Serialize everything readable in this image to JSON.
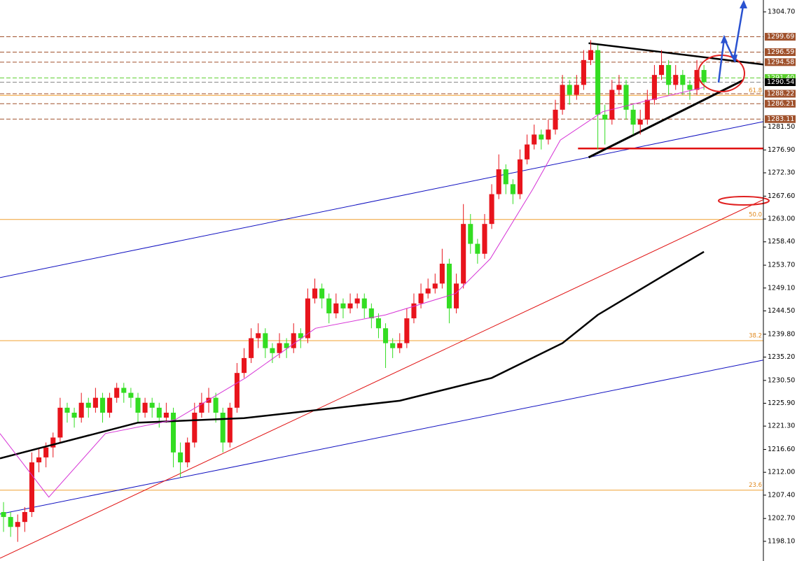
{
  "chart_data": {
    "type": "candlestick",
    "xlim": [
      -0.5,
      107.4
    ],
    "ylim": [
      1194.14,
      1307.09
    ],
    "yticks": [
      {
        "value": 1304.7,
        "label": "1304.70"
      },
      {
        "value": 1281.5,
        "label": "1281.50"
      },
      {
        "value": 1276.9,
        "label": "1276.90"
      },
      {
        "value": 1272.3,
        "label": "1272.30"
      },
      {
        "value": 1267.6,
        "label": "1267.60"
      },
      {
        "value": 1263.0,
        "label": "1263.00"
      },
      {
        "value": 1258.4,
        "label": "1258.40"
      },
      {
        "value": 1253.7,
        "label": "1253.70"
      },
      {
        "value": 1249.1,
        "label": "1249.10"
      },
      {
        "value": 1244.5,
        "label": "1244.50"
      },
      {
        "value": 1239.8,
        "label": "1239.80"
      },
      {
        "value": 1235.2,
        "label": "1235.20"
      },
      {
        "value": 1230.5,
        "label": "1230.50"
      },
      {
        "value": 1225.9,
        "label": "1225.90"
      },
      {
        "value": 1221.3,
        "label": "1221.30"
      },
      {
        "value": 1216.6,
        "label": "1216.60"
      },
      {
        "value": 1212.0,
        "label": "1212.00"
      },
      {
        "value": 1207.4,
        "label": "1207.40"
      },
      {
        "value": 1202.7,
        "label": "1202.70"
      },
      {
        "value": 1198.1,
        "label": "1198.10"
      }
    ],
    "up_color": "#e8141c",
    "down_color": "#33dd22",
    "ohlc": [
      [
        1204,
        1206,
        1200,
        1203
      ],
      [
        1203,
        1204,
        1199,
        1201
      ],
      [
        1201,
        1203.5,
        1198,
        1202
      ],
      [
        1202,
        1205,
        1200,
        1204
      ],
      [
        1204,
        1216,
        1203,
        1214
      ],
      [
        1214,
        1217,
        1212,
        1215
      ],
      [
        1215,
        1218,
        1213,
        1217
      ],
      [
        1217,
        1220,
        1215,
        1219
      ],
      [
        1219,
        1227,
        1218,
        1225
      ],
      [
        1225,
        1226,
        1222,
        1224
      ],
      [
        1224,
        1225,
        1221,
        1223
      ],
      [
        1223,
        1228,
        1222,
        1226
      ],
      [
        1226,
        1227,
        1223,
        1225
      ],
      [
        1225,
        1229,
        1224,
        1227
      ],
      [
        1227,
        1228,
        1222,
        1224
      ],
      [
        1224,
        1228,
        1223,
        1227
      ],
      [
        1227,
        1230,
        1226,
        1229
      ],
      [
        1229,
        1230,
        1226,
        1228
      ],
      [
        1228,
        1229,
        1225,
        1227
      ],
      [
        1227,
        1228,
        1222,
        1224
      ],
      [
        1224,
        1227,
        1223,
        1226
      ],
      [
        1226,
        1227,
        1223,
        1225
      ],
      [
        1225,
        1226,
        1221,
        1223
      ],
      [
        1223,
        1226,
        1222,
        1224
      ],
      [
        1224,
        1225,
        1213,
        1216
      ],
      [
        1216,
        1218,
        1211,
        1214
      ],
      [
        1214,
        1219,
        1213,
        1218
      ],
      [
        1218,
        1226,
        1217,
        1224
      ],
      [
        1224,
        1228,
        1223,
        1226
      ],
      [
        1226,
        1229,
        1224,
        1227
      ],
      [
        1227,
        1228,
        1222,
        1224
      ],
      [
        1224,
        1225,
        1216,
        1218
      ],
      [
        1218,
        1226,
        1217,
        1225
      ],
      [
        1225,
        1234,
        1224,
        1232
      ],
      [
        1232,
        1237,
        1231,
        1235
      ],
      [
        1235,
        1241,
        1234,
        1239
      ],
      [
        1239,
        1242,
        1237,
        1240
      ],
      [
        1240,
        1241,
        1235,
        1237
      ],
      [
        1237,
        1238,
        1234,
        1236
      ],
      [
        1236,
        1240,
        1235,
        1238
      ],
      [
        1238,
        1239,
        1235,
        1237
      ],
      [
        1237,
        1242,
        1236,
        1240
      ],
      [
        1240,
        1241,
        1237,
        1239
      ],
      [
        1239,
        1249,
        1238,
        1247
      ],
      [
        1247,
        1251,
        1246,
        1249
      ],
      [
        1249,
        1250,
        1245,
        1247
      ],
      [
        1247,
        1248,
        1242,
        1244
      ],
      [
        1244,
        1248,
        1243,
        1246
      ],
      [
        1246,
        1247,
        1243,
        1245
      ],
      [
        1245,
        1248,
        1244,
        1246
      ],
      [
        1246,
        1248,
        1245,
        1247
      ],
      [
        1247,
        1248,
        1243,
        1245
      ],
      [
        1245,
        1246,
        1241,
        1243
      ],
      [
        1243,
        1244,
        1239,
        1241
      ],
      [
        1241,
        1242,
        1233,
        1238
      ],
      [
        1238,
        1239,
        1235,
        1237
      ],
      [
        1237,
        1240,
        1236,
        1238
      ],
      [
        1238,
        1245,
        1237,
        1243
      ],
      [
        1243,
        1248,
        1242,
        1246
      ],
      [
        1246,
        1250,
        1245,
        1248
      ],
      [
        1248,
        1251,
        1247,
        1249
      ],
      [
        1249,
        1252,
        1248,
        1250
      ],
      [
        1250,
        1257,
        1249,
        1254
      ],
      [
        1254,
        1255,
        1242,
        1245
      ],
      [
        1245,
        1252,
        1244,
        1250
      ],
      [
        1250,
        1266,
        1249,
        1262
      ],
      [
        1262,
        1264,
        1256,
        1258
      ],
      [
        1258,
        1259,
        1254,
        1256
      ],
      [
        1256,
        1264,
        1255,
        1262
      ],
      [
        1262,
        1270,
        1261,
        1268
      ],
      [
        1268,
        1276,
        1267,
        1273
      ],
      [
        1273,
        1274,
        1268,
        1270
      ],
      [
        1270,
        1271,
        1266,
        1268
      ],
      [
        1268,
        1277,
        1267,
        1275
      ],
      [
        1275,
        1280,
        1274,
        1278
      ],
      [
        1278,
        1282,
        1277,
        1280
      ],
      [
        1280,
        1281,
        1277,
        1279
      ],
      [
        1279,
        1283,
        1278,
        1281
      ],
      [
        1281,
        1287,
        1280,
        1285
      ],
      [
        1285,
        1292,
        1284,
        1290
      ],
      [
        1290,
        1291,
        1286,
        1288
      ],
      [
        1288,
        1292,
        1287,
        1290
      ],
      [
        1290,
        1297,
        1289,
        1295
      ],
      [
        1295,
        1299,
        1294,
        1297
      ],
      [
        1297,
        1298,
        1277,
        1284
      ],
      [
        1284,
        1286,
        1278,
        1283
      ],
      [
        1283,
        1291,
        1282,
        1289
      ],
      [
        1289,
        1292,
        1288,
        1290
      ],
      [
        1290,
        1291,
        1283,
        1285
      ],
      [
        1285,
        1286,
        1280,
        1282
      ],
      [
        1282,
        1285,
        1280,
        1283
      ],
      [
        1283,
        1289,
        1282,
        1287
      ],
      [
        1287,
        1294,
        1286,
        1292
      ],
      [
        1292,
        1297,
        1291,
        1294
      ],
      [
        1294,
        1295,
        1288,
        1290
      ],
      [
        1290,
        1294,
        1289,
        1292
      ],
      [
        1292,
        1293,
        1288,
        1290
      ],
      [
        1290,
        1291,
        1287,
        1289
      ],
      [
        1289,
        1295,
        1288,
        1293
      ],
      [
        1293,
        1294,
        1289,
        1290.54
      ]
    ],
    "series": [
      {
        "color": "#000000",
        "width": 2.5,
        "x": [
          -0.5,
          19,
          34,
          56,
          69,
          79,
          84,
          94,
          99
        ],
        "values": [
          1214.8,
          1222.0,
          1222.9,
          1226.4,
          1231.0,
          1238.0,
          1243.7,
          1252.2,
          1256.4
        ]
      },
      {
        "color": "#d633d6",
        "width": 1,
        "x": [
          -0.5,
          6.4,
          14.4,
          24.3,
          34.2,
          44.1,
          54,
          63.9,
          68.8,
          74.8,
          78.7,
          84.7,
          90.6,
          99
        ],
        "values": [
          1219.8,
          1207.0,
          1219.8,
          1222.6,
          1231.0,
          1241.0,
          1243.7,
          1248.0,
          1255.0,
          1269.0,
          1278.9,
          1284.6,
          1286.7,
          1289.5
        ]
      }
    ],
    "trendlines": [
      {
        "color": "#1010c0",
        "width": 1,
        "x": [
          -0.5,
          107.4
        ],
        "values": [
          1251.2,
          1282.6
        ]
      },
      {
        "color": "#1010c0",
        "width": 1,
        "x": [
          -0.5,
          107.4
        ],
        "values": [
          1203.6,
          1234.6
        ]
      },
      {
        "color": "#e01010",
        "width": 1,
        "x": [
          -0.5,
          107.4
        ],
        "values": [
          1194.7,
          1266.9
        ]
      },
      {
        "color": "#e01010",
        "width": 2.5,
        "x": [
          81.2,
          107.4
        ],
        "values": [
          1277.2,
          1277.2
        ]
      },
      {
        "color": "#000000",
        "width": 2.5,
        "x": [
          82.7,
          107.4
        ],
        "values": [
          1298.4,
          1294.1
        ]
      },
      {
        "color": "#000000",
        "width": 3,
        "x": [
          82.7,
          104.5
        ],
        "values": [
          1275.4,
          1290.9
        ]
      }
    ],
    "price_levels": [
      {
        "value": 1299.69,
        "label": "1299.69",
        "color": "#a0522d"
      },
      {
        "value": 1296.59,
        "label": "1296.59",
        "color": "#a0522d"
      },
      {
        "value": 1294.58,
        "label": "1294.58",
        "color": "#a0522d"
      },
      {
        "value": 1291.4,
        "label": "1291.40",
        "color": "#5ccf2e"
      },
      {
        "value": 1290.54,
        "label": "1290.54",
        "color": "#000000"
      },
      {
        "value": 1288.22,
        "label": "1288.22",
        "color": "#a0522d"
      },
      {
        "value": 1286.21,
        "label": "1286.21",
        "color": "#a0522d"
      },
      {
        "value": 1283.11,
        "label": "1283.11",
        "color": "#a0522d"
      }
    ],
    "fib_levels": [
      {
        "value": 1287.9,
        "label": "61.8"
      },
      {
        "value": 1262.9,
        "label": "50.0"
      },
      {
        "value": 1238.5,
        "label": "38.2"
      },
      {
        "value": 1208.4,
        "label": "23.6"
      }
    ]
  }
}
